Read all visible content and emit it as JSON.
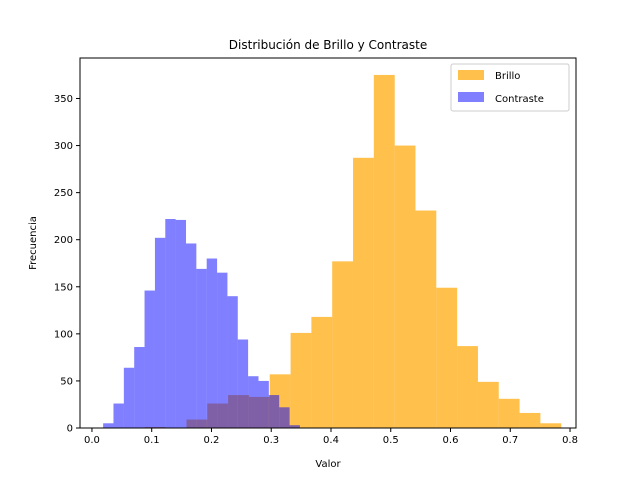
{
  "chart_data": {
    "type": "bar",
    "subtype": "histogram",
    "title": "Distribución de Brillo y Contraste",
    "xlabel": "Valor",
    "ylabel": "Frecuencia",
    "xlim": [
      -0.02,
      0.81
    ],
    "ylim": [
      0,
      393
    ],
    "xticks": [
      0.0,
      0.1,
      0.2,
      0.3,
      0.4,
      0.5,
      0.6,
      0.7,
      0.8
    ],
    "xtick_labels": [
      "0.0",
      "0.1",
      "0.2",
      "0.3",
      "0.4",
      "0.5",
      "0.6",
      "0.7",
      "0.8"
    ],
    "yticks": [
      0,
      50,
      100,
      150,
      200,
      250,
      300,
      350
    ],
    "ytick_labels": [
      "0",
      "50",
      "100",
      "150",
      "200",
      "250",
      "300",
      "350"
    ],
    "grid": false,
    "legend": "top-right",
    "series": [
      {
        "name": "Brillo",
        "color": "#ffa500",
        "alpha": 0.7,
        "bin_edges": [
          0.0885,
          0.1233,
          0.1582,
          0.193,
          0.2278,
          0.2627,
          0.2975,
          0.3324,
          0.3672,
          0.402,
          0.4369,
          0.4717,
          0.5066,
          0.5414,
          0.5762,
          0.6111,
          0.6459,
          0.6807,
          0.7156,
          0.7504,
          0.7853
        ],
        "counts": [
          1,
          0,
          9,
          26,
          35,
          33,
          57,
          101,
          118,
          177,
          287,
          375,
          300,
          231,
          149,
          87,
          49,
          31,
          16,
          5
        ]
      },
      {
        "name": "Contraste",
        "color": "#0000ff",
        "alpha": 0.5,
        "bin_edges": [
          0.0187,
          0.036,
          0.0534,
          0.0707,
          0.088,
          0.1054,
          0.1227,
          0.14,
          0.1574,
          0.1747,
          0.192,
          0.2094,
          0.2267,
          0.244,
          0.2613,
          0.2787,
          0.296,
          0.3133,
          0.3307,
          0.348
        ],
        "counts": [
          5,
          26,
          64,
          86,
          146,
          202,
          222,
          221,
          196,
          169,
          180,
          165,
          140,
          94,
          55,
          50,
          35,
          22,
          3
        ]
      }
    ]
  }
}
